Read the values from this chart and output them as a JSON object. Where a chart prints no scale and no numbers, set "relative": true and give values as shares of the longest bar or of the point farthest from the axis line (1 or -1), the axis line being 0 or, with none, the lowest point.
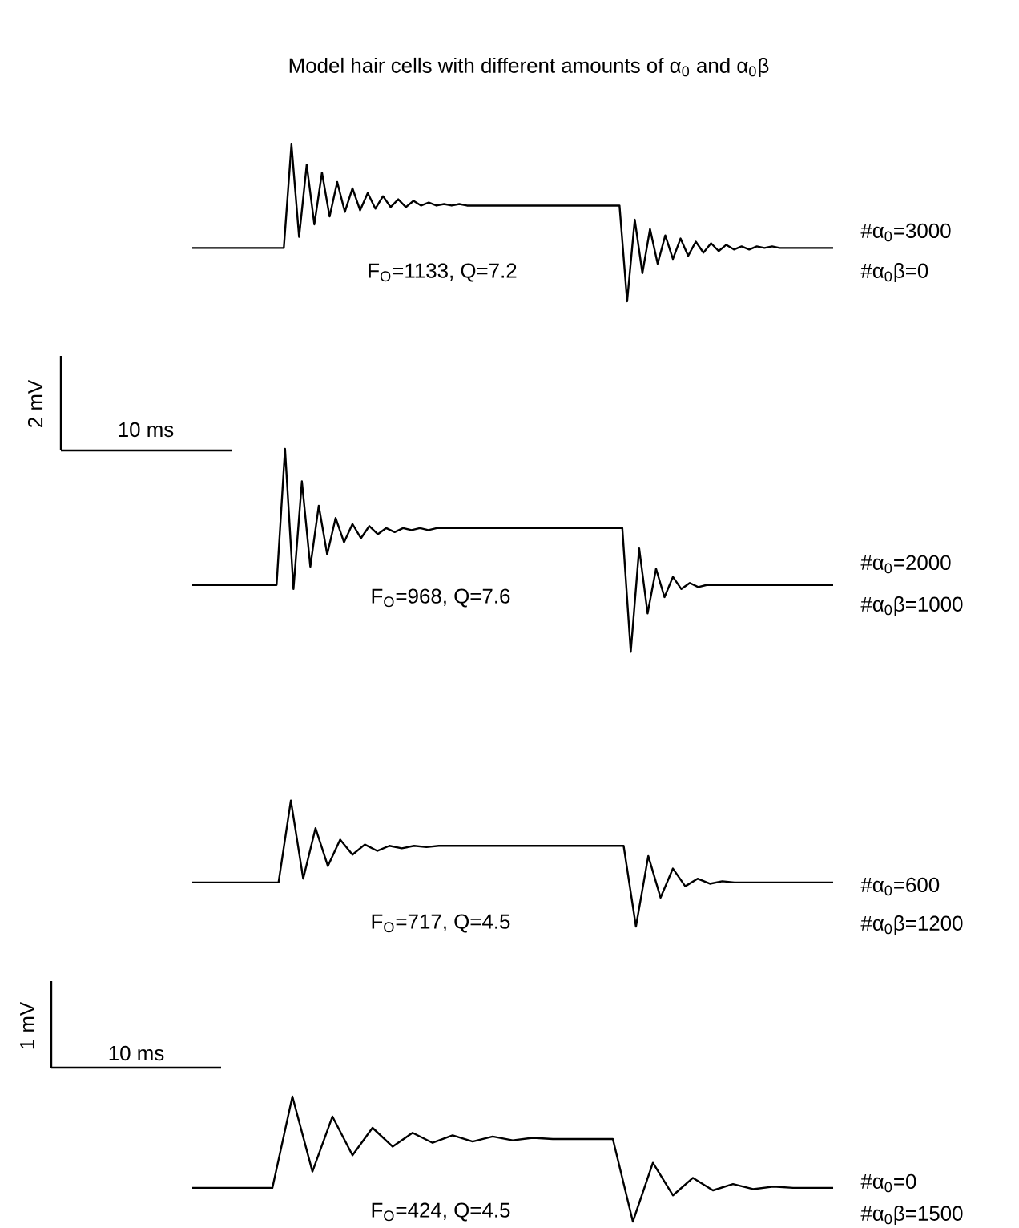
{
  "chart_data": [
    {
      "type": "line",
      "relative": true,
      "color": "#000000",
      "title": "Model hair cells with different amounts of α$_{0}$ and α$_{0}$β",
      "annotations": [
        "F$_{O}$=1133, Q=7.2",
        "#α$_{0}$=3000",
        "#α$_{0}$β=0",
        "2 mV",
        "10 ms"
      ],
      "categories": [
        null,
        null,
        null,
        null,
        null,
        null,
        null,
        null,
        null,
        null,
        null,
        null,
        null,
        null,
        null,
        null,
        null,
        null,
        null,
        null,
        null,
        null,
        null,
        null,
        null,
        null,
        null,
        null,
        null,
        null,
        null,
        null,
        null,
        null,
        null,
        null,
        null,
        null,
        null,
        null,
        null,
        null,
        null,
        null,
        null,
        null,
        null,
        null,
        null,
        null,
        null,
        null,
        null,
        null,
        null,
        null,
        null,
        null,
        null,
        null,
        null,
        null,
        null,
        null,
        null,
        null,
        null,
        null,
        null,
        null,
        null,
        null,
        null,
        null,
        null,
        null,
        null,
        null,
        null,
        null,
        null,
        null,
        null,
        null,
        null
      ],
      "values": [
        0.34,
        0.34,
        0.34,
        0.34,
        0.34,
        0.34,
        0.34,
        0.34,
        0.34,
        0.34,
        0.34,
        0.34,
        0.34,
        1.0,
        0.41,
        0.87,
        0.49,
        0.82,
        0.54,
        0.76,
        0.57,
        0.72,
        0.58,
        0.69,
        0.59,
        0.67,
        0.6,
        0.65,
        0.6,
        0.64,
        0.61,
        0.63,
        0.61,
        0.62,
        0.61,
        0.62,
        0.61,
        0.61,
        0.61,
        0.61,
        0.61,
        0.61,
        0.61,
        0.61,
        0.61,
        0.61,
        0.61,
        0.61,
        0.61,
        0.61,
        0.61,
        0.61,
        0.61,
        0.61,
        0.61,
        0.61,
        0.61,
        0,
        0.52,
        0.18,
        0.46,
        0.24,
        0.42,
        0.27,
        0.4,
        0.29,
        0.38,
        0.31,
        0.37,
        0.32,
        0.36,
        0.33,
        0.35,
        0.33,
        0.35,
        0.34,
        0.35,
        0.34,
        0.34,
        0.34,
        0.34,
        0.34,
        0.34,
        0.34,
        0.34
      ]
    },
    {
      "type": "line",
      "relative": true,
      "color": "#000000",
      "annotations": [
        "F$_{O}$=968, Q=7.6",
        "#α$_{0}$=2000",
        "#α$_{0}$β=1000"
      ],
      "categories": [
        null,
        null,
        null,
        null,
        null,
        null,
        null,
        null,
        null,
        null,
        null,
        null,
        null,
        null,
        null,
        null,
        null,
        null,
        null,
        null,
        null,
        null,
        null,
        null,
        null,
        null,
        null,
        null,
        null,
        null,
        null,
        null,
        null,
        null,
        null,
        null,
        null,
        null,
        null,
        null,
        null,
        null,
        null,
        null,
        null,
        null,
        null,
        null,
        null,
        null,
        null,
        null,
        null,
        null,
        null,
        null,
        null,
        null,
        null,
        null,
        null,
        null,
        null,
        null,
        null,
        null,
        null,
        null,
        null,
        null,
        null,
        null,
        null,
        null,
        null,
        null,
        null
      ],
      "values": [
        0.33,
        0.33,
        0.33,
        0.33,
        0.33,
        0.33,
        0.33,
        0.33,
        0.33,
        0.33,
        0.33,
        1.0,
        0.31,
        0.84,
        0.42,
        0.72,
        0.48,
        0.66,
        0.54,
        0.63,
        0.56,
        0.62,
        0.58,
        0.61,
        0.59,
        0.61,
        0.6,
        0.61,
        0.6,
        0.61,
        0.61,
        0.61,
        0.61,
        0.61,
        0.61,
        0.61,
        0.61,
        0.61,
        0.61,
        0.61,
        0.61,
        0.61,
        0.61,
        0.61,
        0.61,
        0.61,
        0.61,
        0.61,
        0.61,
        0.61,
        0.61,
        0.61,
        0,
        0.51,
        0.19,
        0.41,
        0.27,
        0.37,
        0.31,
        0.34,
        0.32,
        0.33,
        0.33,
        0.33,
        0.33,
        0.33,
        0.33,
        0.33,
        0.33,
        0.33,
        0.33,
        0.33,
        0.33,
        0.33,
        0.33,
        0.33,
        0.33
      ]
    },
    {
      "type": "line",
      "relative": true,
      "color": "#000000",
      "annotations": [
        "F$_{O}$=717, Q=4.5",
        "#α$_{0}$=600",
        "#α$_{0}$β=1200",
        "1 mV",
        "10 ms"
      ],
      "categories": [
        null,
        null,
        null,
        null,
        null,
        null,
        null,
        null,
        null,
        null,
        null,
        null,
        null,
        null,
        null,
        null,
        null,
        null,
        null,
        null,
        null,
        null,
        null,
        null,
        null,
        null,
        null,
        null,
        null,
        null,
        null,
        null,
        null,
        null,
        null,
        null,
        null,
        null,
        null,
        null,
        null,
        null,
        null,
        null,
        null,
        null,
        null,
        null,
        null,
        null,
        null,
        null,
        null
      ],
      "values": [
        0.35,
        0.35,
        0.35,
        0.35,
        0.35,
        0.35,
        0.35,
        0.35,
        1.0,
        0.38,
        0.78,
        0.48,
        0.69,
        0.57,
        0.65,
        0.6,
        0.64,
        0.62,
        0.64,
        0.63,
        0.64,
        0.64,
        0.64,
        0.64,
        0.64,
        0.64,
        0.64,
        0.64,
        0.64,
        0.64,
        0.64,
        0.64,
        0.64,
        0.64,
        0.64,
        0.64,
        0,
        0.56,
        0.23,
        0.46,
        0.32,
        0.38,
        0.34,
        0.36,
        0.35,
        0.35,
        0.35,
        0.35,
        0.35,
        0.35,
        0.35,
        0.35,
        0.35
      ]
    },
    {
      "type": "line",
      "relative": true,
      "color": "#000000",
      "annotations": [
        "F$_{O}$=424, Q=4.5",
        "#α$_{0}$=0",
        "#α$_{0}$β=1500"
      ],
      "categories": [
        null,
        null,
        null,
        null,
        null,
        null,
        null,
        null,
        null,
        null,
        null,
        null,
        null,
        null,
        null,
        null,
        null,
        null,
        null,
        null,
        null,
        null,
        null,
        null,
        null,
        null,
        null,
        null,
        null,
        null,
        null,
        null,
        null
      ],
      "values": [
        0.27,
        0.27,
        0.27,
        0.27,
        0.27,
        1.0,
        0.4,
        0.84,
        0.53,
        0.75,
        0.6,
        0.71,
        0.63,
        0.69,
        0.64,
        0.68,
        0.65,
        0.67,
        0.66,
        0.66,
        0.66,
        0.66,
        0,
        0.47,
        0.21,
        0.35,
        0.25,
        0.3,
        0.26,
        0.28,
        0.27,
        0.27,
        0.27
      ]
    }
  ]
}
